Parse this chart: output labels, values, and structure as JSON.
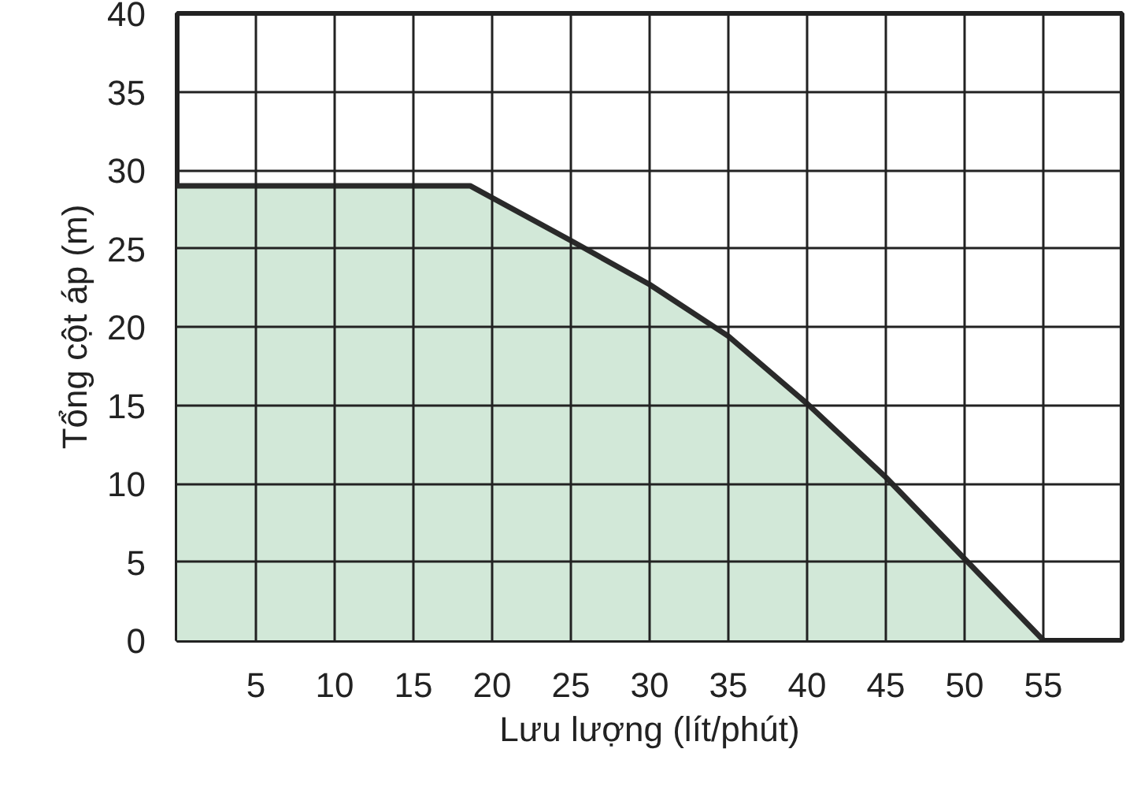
{
  "chart_data": {
    "type": "area",
    "xlabel": "Lưu lượng (lít/phút)",
    "ylabel": "Tổng cột áp (m)",
    "x": [
      0,
      18.6,
      25,
      30,
      35,
      40,
      45,
      50,
      55
    ],
    "series": [
      {
        "color": "#d2e8d8",
        "values": [
          29,
          29,
          25.5,
          22.7,
          19.4,
          15.1,
          10.4,
          5.2,
          0
        ]
      }
    ],
    "xlim": [
      0,
      60
    ],
    "xticks": [
      5,
      10,
      15,
      20,
      25,
      30,
      35,
      40,
      45,
      50,
      55
    ],
    "ylim": [
      0,
      40
    ],
    "yticks": [
      0,
      5,
      10,
      15,
      20,
      25,
      30,
      35,
      40
    ],
    "grid": true
  }
}
